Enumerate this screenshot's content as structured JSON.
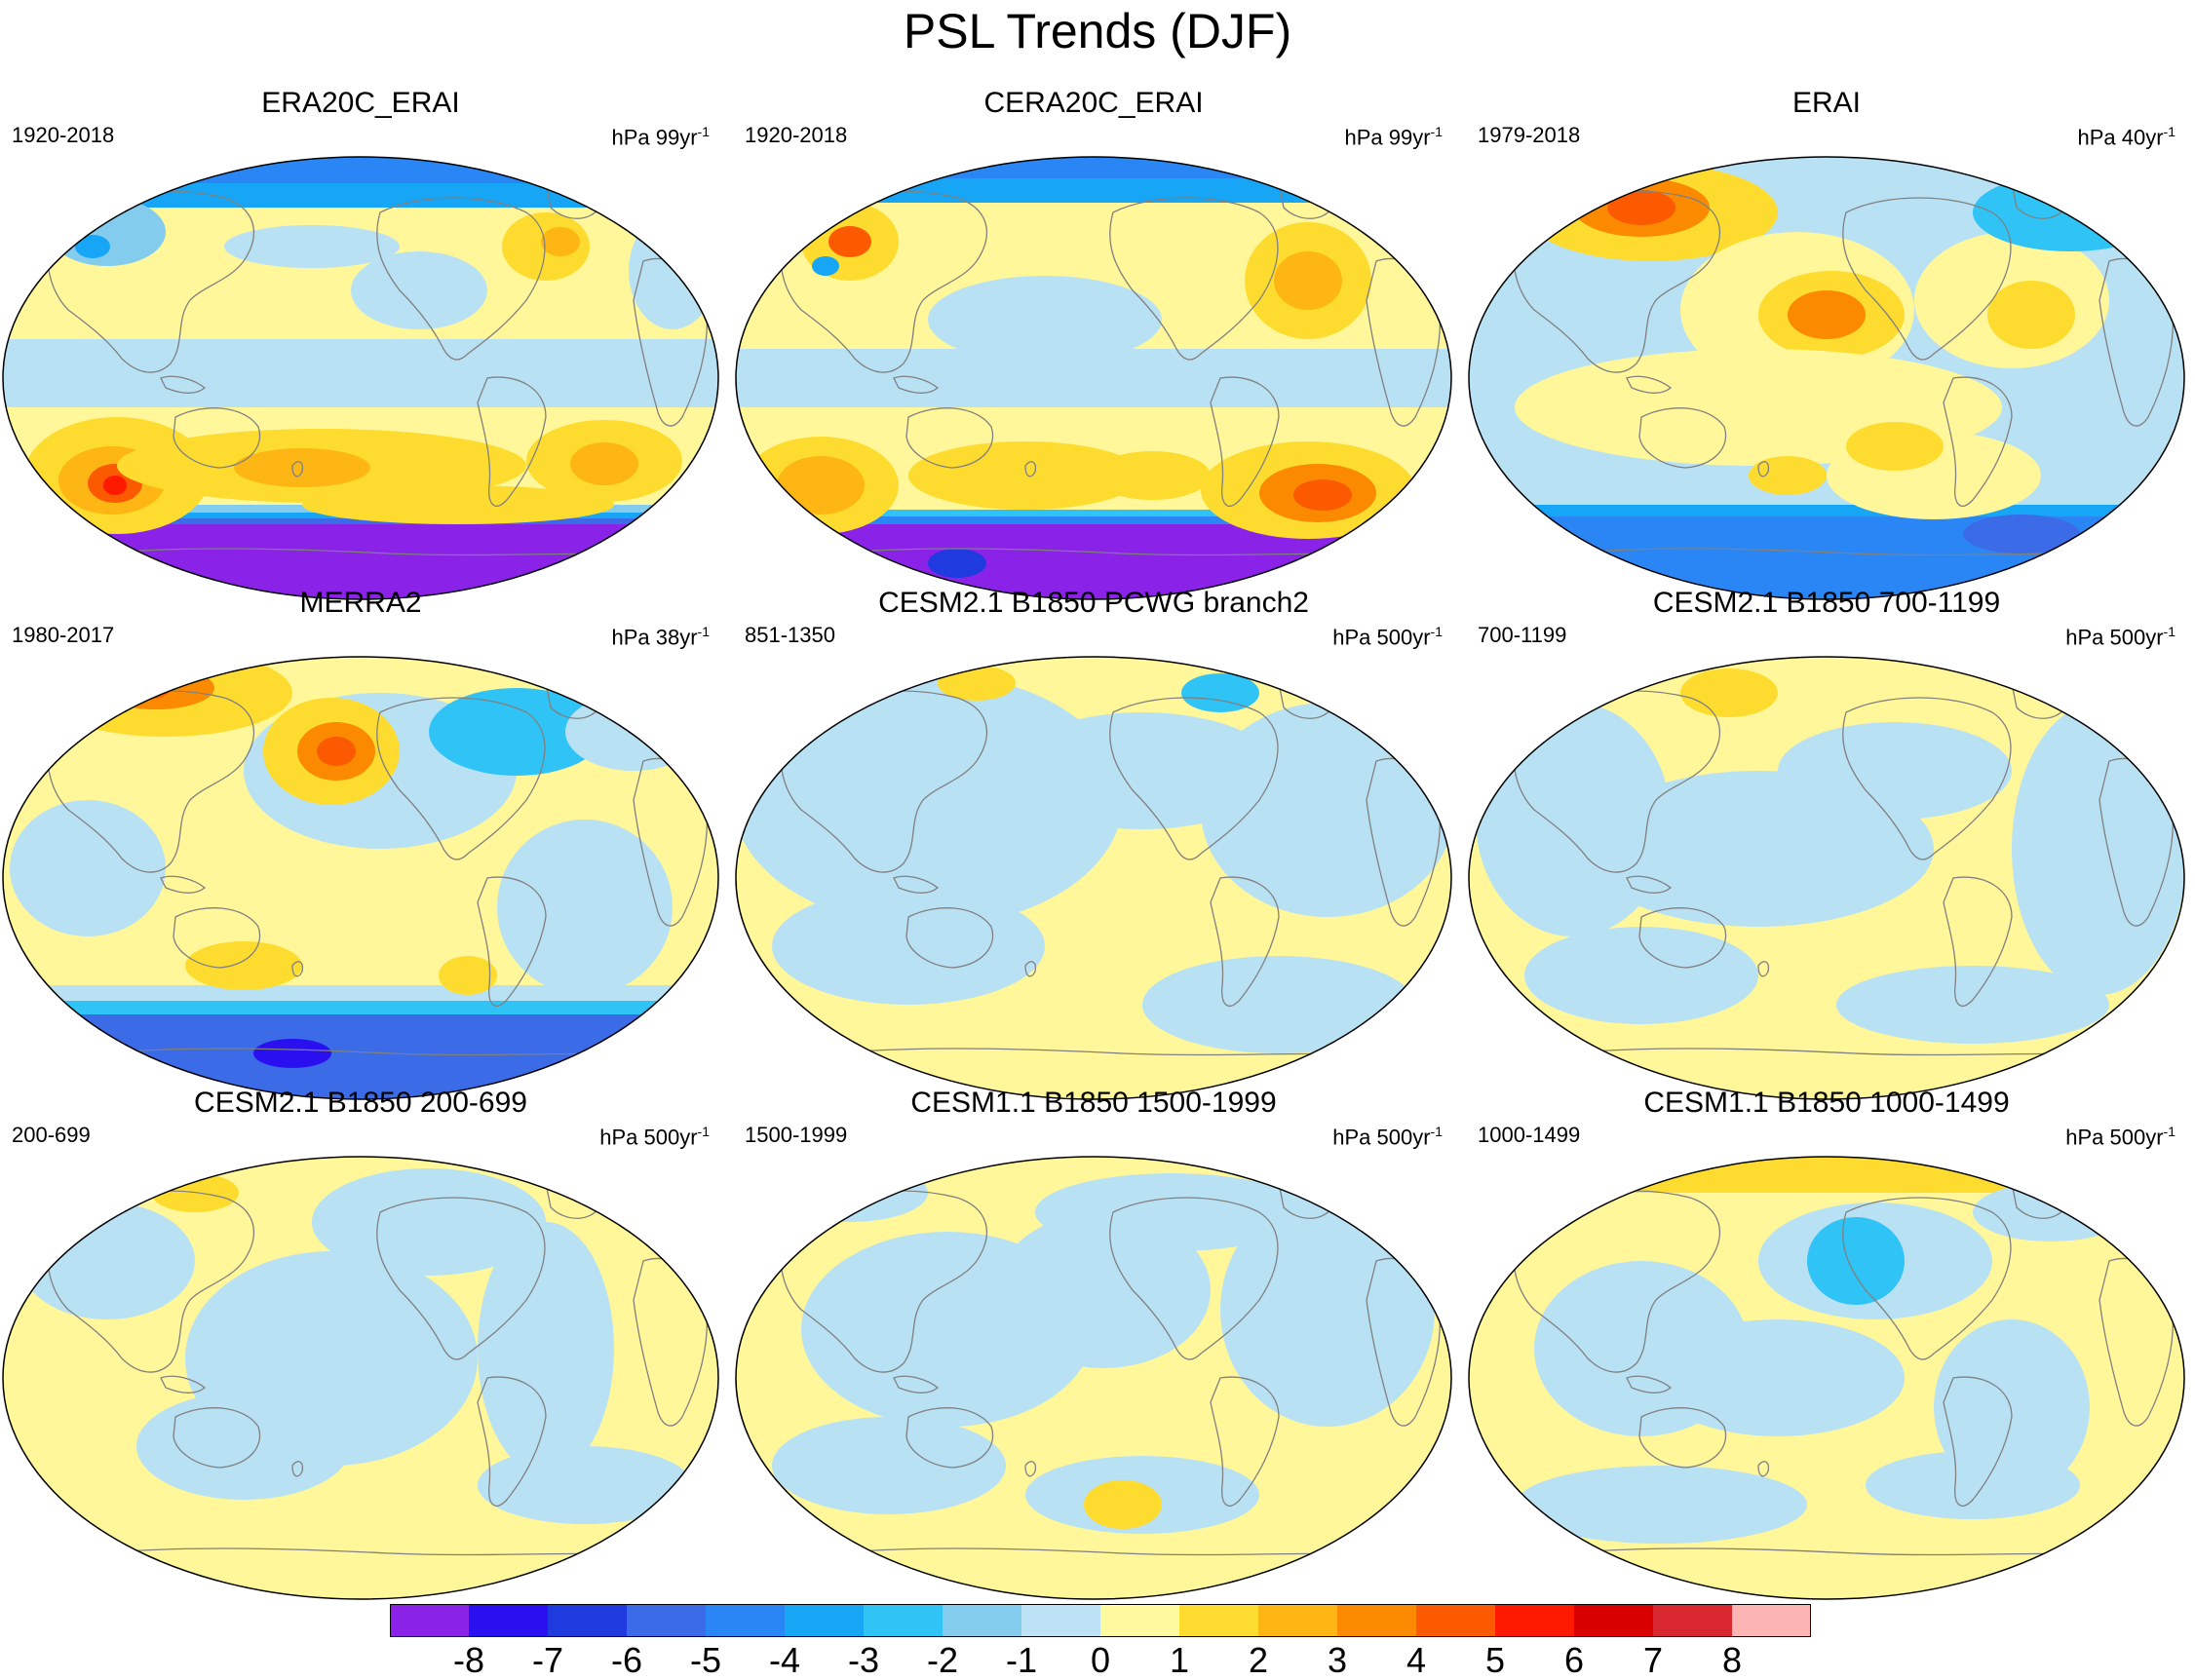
{
  "title": "PSL Trends (DJF)",
  "colors": {
    "ocean_light_blue": "#b9e1f4",
    "pale_yellow": "#fff79a",
    "coast": "#808080",
    "antarctic_purple": "#8a2be2"
  },
  "panels": [
    {
      "title": "ERA20C_ERAI",
      "years": "1920-2018",
      "units_base": "hPa 99yr",
      "units_exp": "-1"
    },
    {
      "title": "CERA20C_ERAI",
      "years": "1920-2018",
      "units_base": "hPa 99yr",
      "units_exp": "-1"
    },
    {
      "title": "ERAI",
      "years": "1979-2018",
      "units_base": "hPa 40yr",
      "units_exp": "-1"
    },
    {
      "title": "MERRA2",
      "years": "1980-2017",
      "units_base": "hPa 38yr",
      "units_exp": "-1"
    },
    {
      "title": "CESM2.1 B1850 PCWG branch2",
      "years": "851-1350",
      "units_base": "hPa 500yr",
      "units_exp": "-1"
    },
    {
      "title": "CESM2.1 B1850 700-1199",
      "years": "700-1199",
      "units_base": "hPa 500yr",
      "units_exp": "-1"
    },
    {
      "title": "CESM2.1 B1850 200-699",
      "years": "200-699",
      "units_base": "hPa 500yr",
      "units_exp": "-1"
    },
    {
      "title": "CESM1.1 B1850 1500-1999",
      "years": "1500-1999",
      "units_base": "hPa 500yr",
      "units_exp": "-1"
    },
    {
      "title": "CESM1.1 B1850 1000-1499",
      "years": "1000-1499",
      "units_base": "hPa 500yr",
      "units_exp": "-1"
    }
  ],
  "colorbar": {
    "colors": [
      "#8b22e8",
      "#2a10f0",
      "#1f3be0",
      "#3b6be6",
      "#2a86f4",
      "#17a6f5",
      "#2fc3f6",
      "#84ccee",
      "#bde2f5",
      "#fff9a0",
      "#fedc2f",
      "#fdb613",
      "#fc8a00",
      "#fb5a00",
      "#fe1a00",
      "#d80000",
      "#d8272e",
      "#fcb4b4"
    ],
    "labels": [
      "-8",
      "-7",
      "-6",
      "-5",
      "-4",
      "-3",
      "-2",
      "-1",
      "0",
      "1",
      "2",
      "3",
      "4",
      "5",
      "6",
      "7",
      "8"
    ]
  }
}
